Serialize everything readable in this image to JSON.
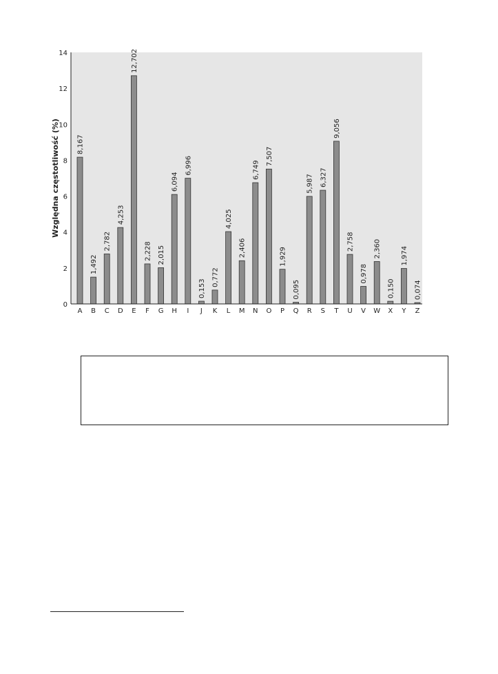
{
  "chart_data": {
    "type": "bar",
    "title": "",
    "xlabel": "",
    "ylabel": "Względna częstotliwość (%)",
    "ylim": [
      0,
      14
    ],
    "yticks": [
      0,
      2,
      4,
      6,
      8,
      10,
      12,
      14
    ],
    "grid": false,
    "background_color": "#e6e6e6",
    "bar_color": "#8c8c8c",
    "categories": [
      "A",
      "B",
      "C",
      "D",
      "E",
      "F",
      "G",
      "H",
      "I",
      "J",
      "K",
      "L",
      "M",
      "N",
      "O",
      "P",
      "Q",
      "R",
      "S",
      "T",
      "U",
      "V",
      "W",
      "X",
      "Y",
      "Z"
    ],
    "values": [
      8.167,
      1.492,
      2.782,
      4.253,
      12.702,
      2.228,
      2.015,
      6.094,
      6.996,
      0.153,
      0.772,
      4.025,
      2.406,
      6.749,
      7.507,
      1.929,
      0.095,
      5.987,
      6.327,
      9.056,
      2.758,
      0.978,
      2.36,
      0.15,
      1.974,
      0.074
    ],
    "data_labels": [
      "8,167",
      "1,492",
      "2,782",
      "4,253",
      "12,702",
      "2,228",
      "2,015",
      "6,094",
      "6,996",
      "0,153",
      "0,772",
      "4,025",
      "2,406",
      "6,749",
      "7,507",
      "1,929",
      "0,095",
      "5,987",
      "6,327",
      "9,056",
      "2,758",
      "0,978",
      "2,360",
      "0,150",
      "1,974",
      "0,074"
    ]
  }
}
